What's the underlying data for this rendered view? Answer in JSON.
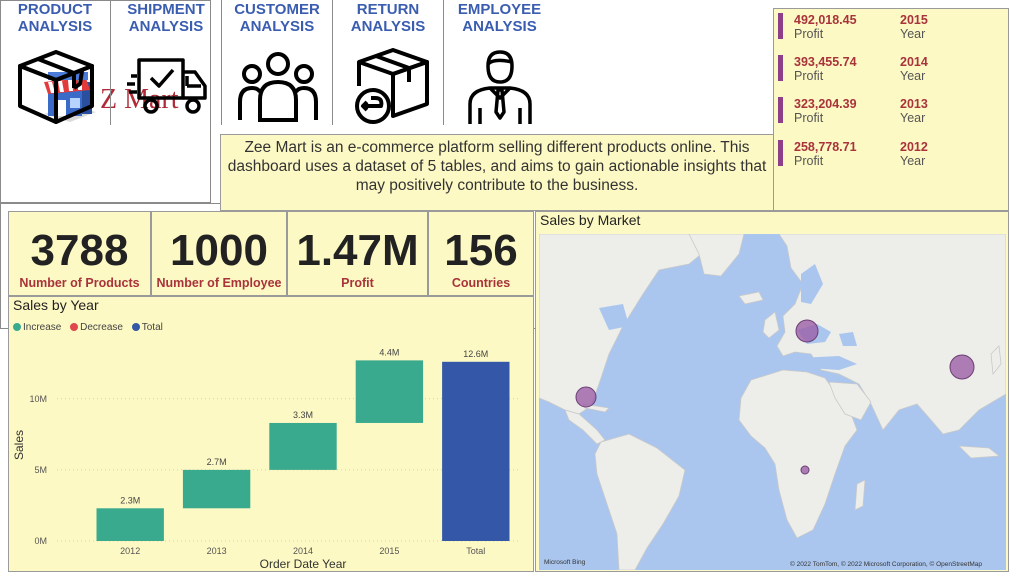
{
  "logo": {
    "text": "Z Mart",
    "icon": "store-icon"
  },
  "nav": [
    {
      "label": "PRODUCT\nANALYSIS",
      "icon": "box-icon"
    },
    {
      "label": "SHIPMENT\nANALYSIS",
      "icon": "truck-icon"
    },
    {
      "label": "CUSTOMER\nANALYSIS",
      "icon": "people-icon"
    },
    {
      "label": "RETURN\nANALYSIS",
      "icon": "return-box-icon"
    },
    {
      "label": "EMPLOYEE\nANALYSIS",
      "icon": "employee-icon"
    }
  ],
  "description": "Zee Mart is an e-commerce platform selling different products online. This dashboard uses a dataset of 5 tables, and aims to gain actionable insights that may positively contribute to the business.",
  "year_profit": [
    {
      "value": "492,018.45",
      "caption": "Profit",
      "year": "2015",
      "year_caption": "Year"
    },
    {
      "value": "393,455.74",
      "caption": "Profit",
      "year": "2014",
      "year_caption": "Year"
    },
    {
      "value": "323,204.39",
      "caption": "Profit",
      "year": "2013",
      "year_caption": "Year"
    },
    {
      "value": "258,778.71",
      "caption": "Profit",
      "year": "2012",
      "year_caption": "Year"
    }
  ],
  "kpis": [
    {
      "value": "3788",
      "label": "Number of Products"
    },
    {
      "value": "1000",
      "label": "Number of Employee"
    },
    {
      "value": "1.47M",
      "label": "Profit"
    },
    {
      "value": "156",
      "label": "Countries"
    }
  ],
  "sales_by_year": {
    "title": "Sales by Year",
    "legend": [
      {
        "label": "Increase",
        "color": "#3aaa8f"
      },
      {
        "label": "Decrease",
        "color": "#e0474c"
      },
      {
        "label": "Total",
        "color": "#3457a8"
      }
    ]
  },
  "chart_data": {
    "type": "bar",
    "subtype": "waterfall",
    "title": "Sales by Year",
    "xlabel": "Order Date Year",
    "ylabel": "Sales",
    "categories": [
      "2012",
      "2013",
      "2014",
      "2015",
      "Total"
    ],
    "values": [
      2.3,
      2.7,
      3.3,
      4.4,
      12.6
    ],
    "data_labels": [
      "2.3M",
      "2.7M",
      "3.3M",
      "4.4M",
      "12.6M"
    ],
    "kinds": [
      "increase",
      "increase",
      "increase",
      "increase",
      "total"
    ],
    "yticks": [
      "0M",
      "5M",
      "10M"
    ],
    "ylim": [
      0,
      13.5
    ],
    "grid": true,
    "colors": {
      "increase": "#3aaa8f",
      "total": "#3457a8"
    }
  },
  "map": {
    "title": "Sales by Market",
    "attribution": "© 2022 TomTom, © 2022 Microsoft Corporation, © OpenStreetMap",
    "bing": "Microsoft Bing",
    "bubble_color": "#9c5fa8",
    "markets": [
      "US Gulf Coast",
      "Central Europe",
      "China",
      "Central Africa"
    ]
  }
}
